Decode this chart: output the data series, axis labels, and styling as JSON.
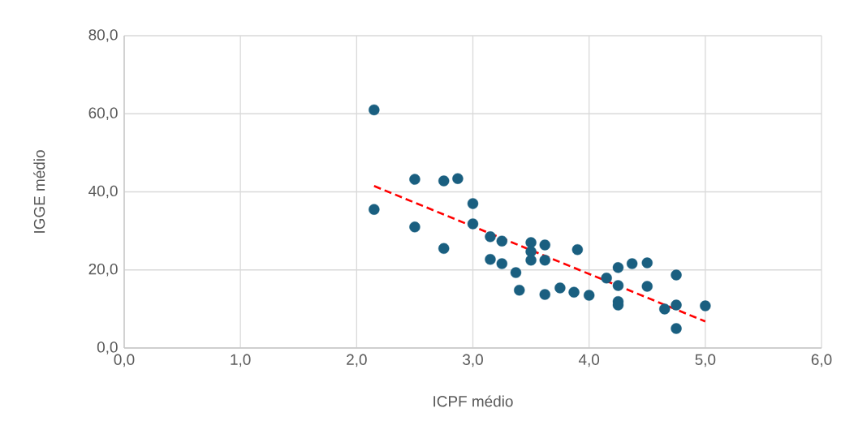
{
  "chart_data": {
    "type": "scatter",
    "xlabel": "ICPF médio",
    "ylabel": "IGGE médio",
    "xlim": [
      0,
      6
    ],
    "ylim": [
      0,
      80
    ],
    "xticks": [
      {
        "value": 0,
        "label": "0,0"
      },
      {
        "value": 1,
        "label": "1,0"
      },
      {
        "value": 2,
        "label": "2,0"
      },
      {
        "value": 3,
        "label": "3,0"
      },
      {
        "value": 4,
        "label": "4,0"
      },
      {
        "value": 5,
        "label": "5,0"
      },
      {
        "value": 6,
        "label": "6,0"
      }
    ],
    "yticks": [
      {
        "value": 0,
        "label": "0,0"
      },
      {
        "value": 20,
        "label": "20,0"
      },
      {
        "value": 40,
        "label": "40,0"
      },
      {
        "value": 60,
        "label": "60,0"
      },
      {
        "value": 80,
        "label": "80,0"
      }
    ],
    "grid": true,
    "series": [
      {
        "type": "scatter",
        "marker": "circle",
        "color": "#1a5f80",
        "x": [
          2.15,
          2.15,
          2.5,
          2.5,
          2.75,
          2.75,
          2.87,
          3.0,
          3.0,
          3.15,
          3.15,
          3.25,
          3.25,
          3.37,
          3.4,
          3.5,
          3.5,
          3.5,
          3.62,
          3.62,
          3.62,
          3.75,
          3.87,
          3.9,
          4.0,
          4.15,
          4.25,
          4.25,
          4.25,
          4.25,
          4.37,
          4.5,
          4.5,
          4.65,
          4.75,
          4.75,
          4.75,
          5.0
        ],
        "values": [
          61.0,
          35.5,
          43.2,
          31.0,
          42.8,
          25.5,
          43.4,
          37.0,
          31.8,
          28.5,
          22.7,
          27.4,
          21.6,
          19.3,
          14.8,
          27.0,
          24.7,
          22.5,
          26.4,
          22.5,
          13.7,
          15.4,
          14.3,
          25.2,
          13.5,
          17.9,
          20.6,
          16.0,
          11.9,
          11.0,
          21.6,
          21.8,
          15.8,
          10.0,
          18.7,
          11.0,
          5.0,
          10.8
        ]
      },
      {
        "type": "line",
        "color": "#ff0000",
        "line_style": "dashed",
        "marker": "none",
        "x": [
          2.15,
          5.0
        ],
        "values": [
          41.5,
          6.8
        ]
      }
    ]
  }
}
